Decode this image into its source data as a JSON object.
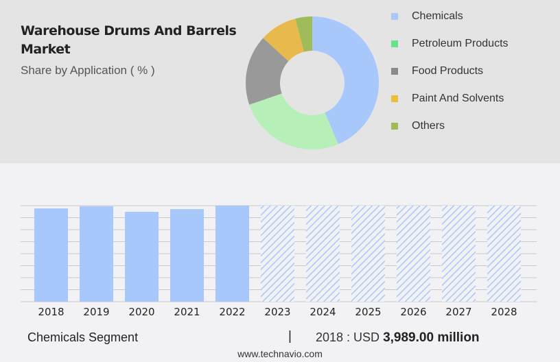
{
  "header": {
    "title": "Warehouse Drums And Barrels Market",
    "subtitle": "Share by Application ( % )"
  },
  "chart_data": [
    {
      "type": "pie",
      "variant": "donut",
      "categories": [
        "Chemicals",
        "Petroleum Products",
        "Food Products",
        "Paint And Solvents",
        "Others"
      ],
      "values": [
        43.6,
        26.1,
        17.1,
        9.1,
        4.1
      ],
      "colors": [
        "#a8c8fc",
        "#b6efb8",
        "#999999",
        "#e8b94c",
        "#9fbb5a"
      ],
      "legend": "right"
    },
    {
      "type": "bar",
      "categories": [
        "2018",
        "2019",
        "2020",
        "2021",
        "2022",
        "2023",
        "2024",
        "2025",
        "2026",
        "2027",
        "2028"
      ],
      "values": [
        3989,
        4077,
        3843,
        3960,
        4106,
        null,
        null,
        null,
        null,
        null,
        null
      ],
      "forecast": [
        "2023",
        "2024",
        "2025",
        "2026",
        "2027",
        "2028"
      ],
      "color": "#a8c8fc",
      "grid": true
    }
  ],
  "legend_colors": {
    "Petroleum Products": "#6be08c",
    "Food Products": "#8a8a8a",
    "Paint And Solvents": "#e8c040",
    "Others": "#9fbb5a",
    "Chemicals": "#a8c8fc"
  },
  "footer": {
    "segment": "Chemicals Segment",
    "separator": "|",
    "prefix": "2018 : USD",
    "value": "3,989.00 million",
    "site": "www.technavio.com"
  }
}
